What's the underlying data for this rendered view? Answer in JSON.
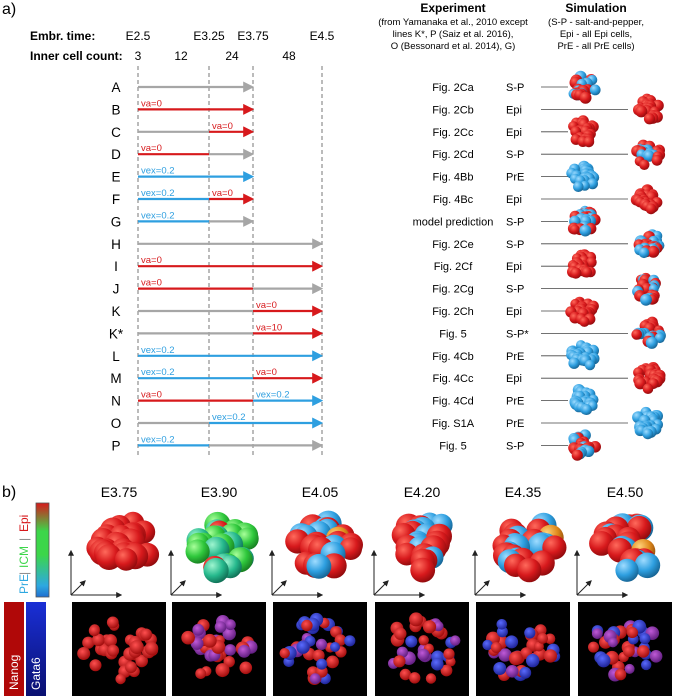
{
  "panel_a": {
    "label": "a)",
    "header": {
      "embr_time_label": "Embr. time:",
      "cell_count_label": "Inner cell count:",
      "times": [
        "E2.5",
        "E3.25",
        "E3.75",
        "E4.5"
      ],
      "counts": [
        "3",
        "12",
        "24",
        "48"
      ],
      "experiment_title": "Experiment",
      "experiment_note": [
        "(from Yamanaka et al., 2010 except",
        "lines K*, P (Saiz et al. 2016),",
        "O (Bessonard et al. 2014), G)"
      ],
      "simulation_title": "Simulation",
      "simulation_note": [
        "(S-P - salt-and-pepper,",
        "Epi - all Epi cells,",
        "PrE - all PrE cells)"
      ]
    },
    "colors": {
      "grey": "#a6a6a6",
      "red": "#d7191c",
      "blue": "#2e9fe0",
      "gridline": "#777777"
    },
    "rows": [
      {
        "id": "A",
        "segments": [
          {
            "from": 0,
            "to": 2,
            "color": "grey"
          }
        ],
        "labels": [],
        "experiment": "Fig. 2Ca",
        "sim": "S-P",
        "cluster": "sp",
        "side": "left"
      },
      {
        "id": "B",
        "segments": [
          {
            "from": 0,
            "to": 2,
            "color": "red"
          }
        ],
        "labels": [
          {
            "at": 0,
            "text": "va=0",
            "color": "red"
          }
        ],
        "experiment": "Fig. 2Cb",
        "sim": "Epi",
        "cluster": "epi",
        "side": "right"
      },
      {
        "id": "C",
        "segments": [
          {
            "from": 0,
            "to": 1,
            "color": "grey"
          },
          {
            "from": 1,
            "to": 2,
            "color": "red"
          }
        ],
        "labels": [
          {
            "at": 1,
            "text": "va=0",
            "color": "red"
          }
        ],
        "experiment": "Fig. 2Cc",
        "sim": "Epi",
        "cluster": "epi",
        "side": "left"
      },
      {
        "id": "D",
        "segments": [
          {
            "from": 0,
            "to": 1,
            "color": "red"
          },
          {
            "from": 1,
            "to": 2,
            "color": "grey"
          }
        ],
        "labels": [
          {
            "at": 0,
            "text": "va=0",
            "color": "red"
          }
        ],
        "experiment": "Fig. 2Cd",
        "sim": "S-P",
        "cluster": "sp",
        "side": "right"
      },
      {
        "id": "E",
        "segments": [
          {
            "from": 0,
            "to": 2,
            "color": "blue"
          }
        ],
        "labels": [
          {
            "at": 0,
            "text": "vex=0.2",
            "color": "blue"
          }
        ],
        "experiment": "Fig. 4Bb",
        "sim": "PrE",
        "cluster": "pre",
        "side": "left"
      },
      {
        "id": "F",
        "segments": [
          {
            "from": 0,
            "to": 1,
            "color": "blue"
          },
          {
            "from": 1,
            "to": 2,
            "color": "red"
          }
        ],
        "labels": [
          {
            "at": 0,
            "text": "vex=0.2",
            "color": "blue"
          },
          {
            "at": 1,
            "text": "va=0",
            "color": "red"
          }
        ],
        "experiment": "Fig. 4Bc",
        "sim": "Epi",
        "cluster": "epi",
        "side": "right"
      },
      {
        "id": "G",
        "segments": [
          {
            "from": 0,
            "to": 1,
            "color": "blue"
          },
          {
            "from": 1,
            "to": 2,
            "color": "grey"
          }
        ],
        "labels": [
          {
            "at": 0,
            "text": "vex=0.2",
            "color": "blue"
          }
        ],
        "experiment": "model prediction",
        "sim": "S-P",
        "cluster": "sp",
        "side": "left"
      },
      {
        "id": "H",
        "segments": [
          {
            "from": 0,
            "to": 3,
            "color": "grey"
          }
        ],
        "labels": [],
        "experiment": "Fig. 2Ce",
        "sim": "S-P",
        "cluster": "sp",
        "side": "right"
      },
      {
        "id": "I",
        "segments": [
          {
            "from": 0,
            "to": 3,
            "color": "red"
          }
        ],
        "labels": [
          {
            "at": 0,
            "text": "va=0",
            "color": "red"
          }
        ],
        "experiment": "Fig. 2Cf",
        "sim": "Epi",
        "cluster": "epi",
        "side": "left"
      },
      {
        "id": "J",
        "segments": [
          {
            "from": 0,
            "to": 2,
            "color": "red"
          },
          {
            "from": 2,
            "to": 3,
            "color": "grey"
          }
        ],
        "labels": [
          {
            "at": 0,
            "text": "va=0",
            "color": "red"
          }
        ],
        "experiment": "Fig. 2Cg",
        "sim": "S-P",
        "cluster": "sp",
        "side": "right"
      },
      {
        "id": "K",
        "segments": [
          {
            "from": 0,
            "to": 2,
            "color": "grey"
          },
          {
            "from": 2,
            "to": 3,
            "color": "red"
          }
        ],
        "labels": [
          {
            "at": 2,
            "text": "va=0",
            "color": "red"
          }
        ],
        "experiment": "Fig. 2Ch",
        "sim": "Epi",
        "cluster": "epi",
        "side": "left"
      },
      {
        "id": "K*",
        "segments": [
          {
            "from": 0,
            "to": 2,
            "color": "grey"
          },
          {
            "from": 2,
            "to": 3,
            "color": "red"
          }
        ],
        "labels": [
          {
            "at": 2,
            "text": "va=10",
            "color": "red"
          }
        ],
        "experiment": "Fig. 5",
        "sim": "S-P*",
        "cluster": "sp",
        "side": "right"
      },
      {
        "id": "L",
        "segments": [
          {
            "from": 0,
            "to": 3,
            "color": "blue"
          }
        ],
        "labels": [
          {
            "at": 0,
            "text": "vex=0.2",
            "color": "blue"
          }
        ],
        "experiment": "Fig. 4Cb",
        "sim": "PrE",
        "cluster": "pre",
        "side": "left"
      },
      {
        "id": "M",
        "segments": [
          {
            "from": 0,
            "to": 2,
            "color": "blue"
          },
          {
            "from": 2,
            "to": 3,
            "color": "red"
          }
        ],
        "labels": [
          {
            "at": 0,
            "text": "vex=0.2",
            "color": "blue"
          },
          {
            "at": 2,
            "text": "va=0",
            "color": "red"
          }
        ],
        "experiment": "Fig. 4Cc",
        "sim": "Epi",
        "cluster": "epi",
        "side": "right"
      },
      {
        "id": "N",
        "segments": [
          {
            "from": 0,
            "to": 2,
            "color": "red"
          },
          {
            "from": 2,
            "to": 3,
            "color": "blue"
          }
        ],
        "labels": [
          {
            "at": 0,
            "text": "va=0",
            "color": "red"
          },
          {
            "at": 2,
            "text": "vex=0.2",
            "color": "blue"
          }
        ],
        "experiment": "Fig. 4Cd",
        "sim": "PrE",
        "cluster": "pre",
        "side": "left"
      },
      {
        "id": "O",
        "segments": [
          {
            "from": 0,
            "to": 1,
            "color": "grey"
          },
          {
            "from": 1,
            "to": 3,
            "color": "blue"
          }
        ],
        "labels": [
          {
            "at": 1,
            "text": "vex=0.2",
            "color": "blue"
          }
        ],
        "experiment": "Fig. S1A",
        "sim": "PrE",
        "cluster": "pre",
        "side": "right"
      },
      {
        "id": "P",
        "segments": [
          {
            "from": 0,
            "to": 1,
            "color": "blue"
          },
          {
            "from": 1,
            "to": 3,
            "color": "grey"
          }
        ],
        "labels": [
          {
            "at": 0,
            "text": "vex=0.2",
            "color": "blue"
          }
        ],
        "experiment": "Fig. 5",
        "sim": "S-P",
        "cluster": "sp",
        "side": "left"
      }
    ]
  },
  "panel_b": {
    "label": "b)",
    "times": [
      "E3.75",
      "E3.90",
      "E4.05",
      "E4.20",
      "E4.35",
      "E4.50"
    ],
    "cluster_types": [
      "epi",
      "transition",
      "mixed",
      "mixed",
      "mixed",
      "mixed"
    ],
    "colorbar_labels": {
      "pre": "PrE",
      "icm": "ICM",
      "epi": "Epi"
    },
    "colorbar_colors": {
      "pre": "#2ea8e0",
      "icm": "#3cd64a",
      "epi": "#d7191c"
    },
    "stain_labels": {
      "nanog": "Nanog",
      "gata6": "Gata6"
    },
    "stain_colors": {
      "nanog": "#e02020",
      "gata6": "#2030d0"
    }
  }
}
